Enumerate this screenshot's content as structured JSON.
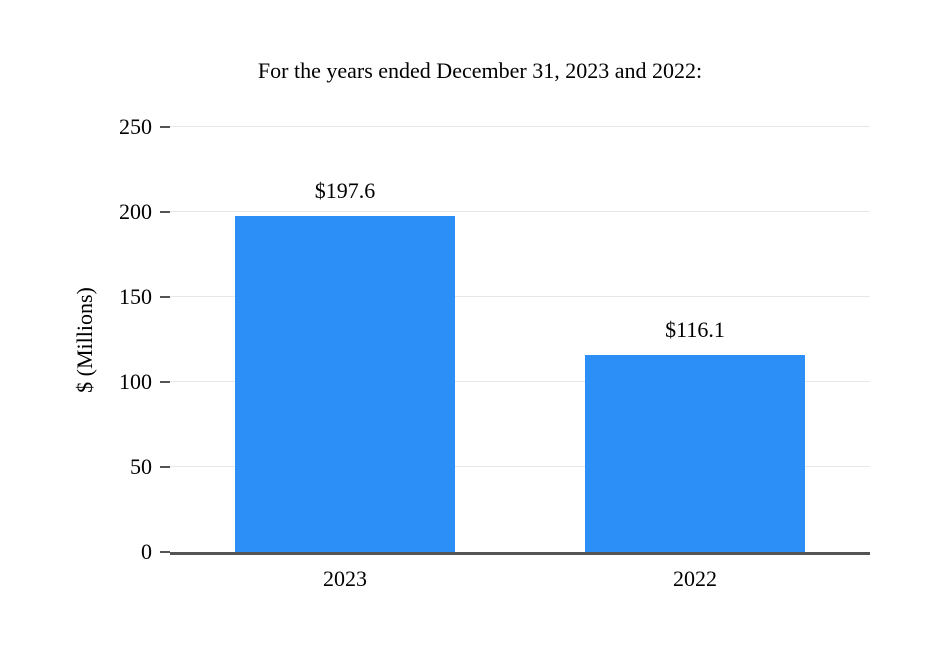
{
  "chart_data": {
    "type": "bar",
    "title": "For the years ended December 31, 2023 and 2022:",
    "ylabel": "$ (Millions)",
    "xlabel": "",
    "categories": [
      "2023",
      "2022"
    ],
    "values": [
      197.6,
      116.1
    ],
    "value_labels": [
      "$197.6",
      "$116.1"
    ],
    "ylim": [
      0,
      250
    ],
    "yticks": [
      0,
      50,
      100,
      150,
      200,
      250
    ],
    "bar_color": "#2b8ff7",
    "axis_color": "#545454",
    "gridline_color": "#e7e7e7",
    "grid": "horizontal",
    "legend": "none"
  }
}
